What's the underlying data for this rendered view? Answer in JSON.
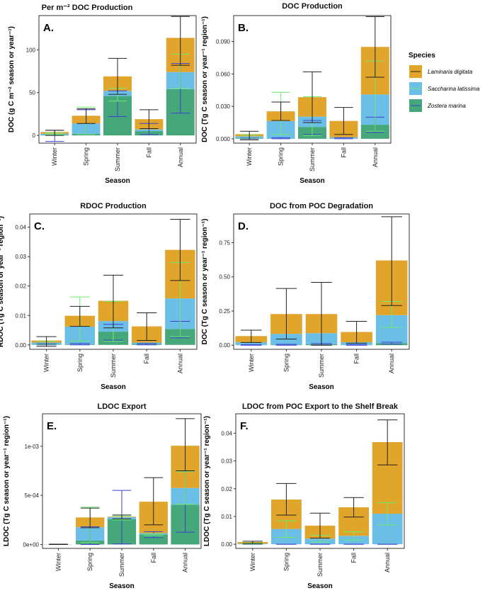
{
  "colors": {
    "laminaria": "#E1A52B",
    "saccharina": "#6BBFE6",
    "zostera": "#45A77A",
    "err_lam": "#222222",
    "err_sac": "#6CEB6C",
    "err_zos": "#3B40D1",
    "panel_border": "#333333"
  },
  "legend": {
    "title": "Species",
    "items": [
      {
        "label": "Laminaria digitata",
        "color": "#E1A52B",
        "err": "#222222"
      },
      {
        "label": "Saccharina latissima",
        "color": "#6BBFE6",
        "err": "#6CEB6C"
      },
      {
        "label": "Zostera marina",
        "color": "#45A77A",
        "err": "#3B40D1"
      }
    ]
  },
  "chart_data": [
    {
      "id": "A",
      "type": "bar",
      "stacked": true,
      "letter": "A.",
      "title": "Per m⁻² DOC Production",
      "xlabel": "Season",
      "ylabel": "DOC (g C m⁻² season or year⁻¹)",
      "categories": [
        "Winter",
        "Spring",
        "Summer",
        "Fall",
        "Annual"
      ],
      "ylim": [
        -9,
        140
      ],
      "yticks": [
        0,
        50,
        100
      ],
      "yticklabels": [
        "0",
        "50",
        "100"
      ],
      "series": [
        {
          "name": "Zostera marina",
          "values": [
            0.5,
            2,
            46,
            5,
            54
          ],
          "err": [
            [
              -7,
              6
            ],
            [
              1,
              30
            ],
            [
              22,
              52
            ],
            [
              1,
              14
            ],
            [
              26,
              84
            ]
          ]
        },
        {
          "name": "Saccharina latissima",
          "values": [
            1.5,
            12,
            6,
            2,
            20
          ],
          "err": [
            [
              1,
              3
            ],
            [
              1,
              33
            ],
            [
              40,
              55
            ],
            [
              null,
              null
            ],
            [
              55,
              95
            ]
          ]
        },
        {
          "name": "Laminaria digitata",
          "values": [
            2,
            9,
            17,
            12,
            40
          ],
          "err": [
            [
              0,
              6
            ],
            [
              14,
              31
            ],
            [
              48,
              90
            ],
            [
              8,
              30
            ],
            [
              82,
              139
            ]
          ]
        }
      ]
    },
    {
      "id": "B",
      "type": "bar",
      "stacked": true,
      "letter": "B.",
      "title": "DOC Production",
      "xlabel": "Season",
      "ylabel": "DOC (Tg C season or year⁻¹ region⁻¹)",
      "categories": [
        "Winter",
        "Spring",
        "Summer",
        "Fall",
        "Annual"
      ],
      "ylim": [
        -0.004,
        0.114
      ],
      "yticks": [
        0,
        0.03,
        0.06,
        0.09
      ],
      "yticklabels": [
        "0.000",
        "0.030",
        "0.060",
        "0.090"
      ],
      "series": [
        {
          "name": "Zostera marina",
          "values": [
            0.0003,
            0.0004,
            0.011,
            0.0003,
            0.013
          ],
          "err": [
            [
              0,
              0.0008
            ],
            [
              0,
              0.001
            ],
            [
              0.004,
              0.017
            ],
            [
              0,
              0.001
            ],
            [
              0.006,
              0.02
            ]
          ]
        },
        {
          "name": "Saccharina latissima",
          "values": [
            0.002,
            0.016,
            0.0095,
            0.0012,
            0.028
          ],
          "err": [
            [
              0.0005,
              0.0035
            ],
            [
              0.004,
              0.043
            ],
            [
              0.003,
              0.039
            ],
            [
              null,
              null
            ],
            [
              0.007,
              0.072
            ]
          ]
        },
        {
          "name": "Laminaria digitata",
          "values": [
            0.002,
            0.009,
            0.018,
            0.015,
            0.044
          ],
          "err": [
            [
              -0.001,
              0.007
            ],
            [
              0.017,
              0.034
            ],
            [
              0.015,
              0.062
            ],
            [
              0.004,
              0.029
            ],
            [
              0.057,
              0.113
            ]
          ]
        }
      ]
    },
    {
      "id": "C",
      "type": "bar",
      "stacked": true,
      "letter": "C.",
      "title": "RDOC Production",
      "xlabel": "Season",
      "ylabel": "RDOC (Tg C season or year⁻¹ region⁻¹)",
      "categories": [
        "Winter",
        "Spring",
        "Summer",
        "Fall",
        "Annual"
      ],
      "ylim": [
        -0.0015,
        0.0445
      ],
      "yticks": [
        0,
        0.01,
        0.02,
        0.03,
        0.04
      ],
      "yticklabels": [
        "0.00",
        "0.01",
        "0.02",
        "0.03",
        "0.04"
      ],
      "series": [
        {
          "name": "Zostera marina",
          "values": [
            0.0001,
            0.0002,
            0.0045,
            0.0003,
            0.0054
          ],
          "err": [
            [
              0,
              0.0004
            ],
            [
              0,
              0.0005
            ],
            [
              0.0016,
              0.007
            ],
            [
              0,
              0.0005
            ],
            [
              0.0024,
              0.008
            ]
          ]
        },
        {
          "name": "Saccharina latissima",
          "values": [
            0.0007,
            0.006,
            0.0036,
            0.0005,
            0.0104
          ],
          "err": [
            [
              0.0002,
              0.0012
            ],
            [
              0.0013,
              0.0163
            ],
            [
              0.0012,
              0.0148
            ],
            [
              null,
              null
            ],
            [
              0.0028,
              0.028
            ]
          ]
        },
        {
          "name": "Laminaria digitata",
          "values": [
            0.0007,
            0.0037,
            0.0069,
            0.0055,
            0.0165
          ],
          "err": [
            [
              -0.0005,
              0.0028
            ],
            [
              0.0063,
              0.0131
            ],
            [
              0.0058,
              0.0237
            ],
            [
              0.0015,
              0.0109
            ],
            [
              0.0219,
              0.0427
            ]
          ]
        }
      ]
    },
    {
      "id": "D",
      "type": "bar",
      "stacked": true,
      "letter": "D.",
      "title": "DOC from POC Degradation",
      "xlabel": "Season",
      "ylabel": "DOC (Tg C season or year⁻¹ region⁻¹)",
      "categories": [
        "Winter",
        "Spring",
        "Summer",
        "Fall",
        "Annual"
      ],
      "ylim": [
        -0.03,
        0.96
      ],
      "yticks": [
        0,
        0.25,
        0.5,
        0.75
      ],
      "yticklabels": [
        "0.00",
        "0.25",
        "0.50",
        "0.75"
      ],
      "series": [
        {
          "name": "Zostera marina",
          "values": [
            0.002,
            0.003,
            0.008,
            0.002,
            0.015
          ],
          "err": [
            [
              0,
              0.004
            ],
            [
              0,
              0.006
            ],
            [
              0.002,
              0.012
            ],
            [
              0,
              0.004
            ],
            [
              0.008,
              0.022
            ]
          ]
        },
        {
          "name": "Saccharina latissima",
          "values": [
            0.02,
            0.08,
            0.08,
            0.02,
            0.205
          ],
          "err": [
            [
              null,
              null
            ],
            [
              null,
              null
            ],
            [
              null,
              null
            ],
            [
              null,
              null
            ],
            [
              0.13,
              0.32
            ]
          ]
        },
        {
          "name": "Laminaria digitata",
          "values": [
            0.045,
            0.145,
            0.14,
            0.075,
            0.4
          ],
          "err": [
            [
              0.02,
              0.11
            ],
            [
              0.045,
              0.415
            ],
            [
              0.0,
              0.46
            ],
            [
              0.015,
              0.175
            ],
            [
              0.29,
              0.94
            ]
          ]
        }
      ]
    },
    {
      "id": "E",
      "type": "bar",
      "stacked": true,
      "letter": "E.",
      "title": "LDOC Export",
      "xlabel": "Season",
      "ylabel": "LDOC (Tg C season or year⁻¹ region⁻¹)",
      "categories": [
        "Winter",
        "Spring",
        "Summer",
        "Fall",
        "Annual"
      ],
      "ylim": [
        -4e-05,
        0.00133
      ],
      "yticks": [
        0,
        0.0005,
        0.001
      ],
      "yticklabels": [
        "0e+00",
        "5e-04",
        "1e-03"
      ],
      "series": [
        {
          "name": "Zostera marina",
          "values": [
            1e-06,
            4e-05,
            0.000258,
            0.0001,
            0.000405
          ],
          "err": [
            [
              0,
              2e-06
            ],
            [
              0,
              0.00018
            ],
            [
              5e-06,
              0.00055
            ],
            [
              7e-05,
              0.00013
            ],
            [
              0.000125,
              0.00075
            ]
          ]
        },
        {
          "name": "Saccharina latissima",
          "values": [
            1e-06,
            0.000135,
            2e-05,
            1.5e-05,
            0.00017
          ],
          "err": [
            [
              0,
              2e-06
            ],
            [
              2e-05,
              0.00038
            ],
            [
              0.00025,
              0.00029
            ],
            [
              9e-05,
              0.00011
            ],
            [
              0.00041,
              0.00074
            ]
          ]
        },
        {
          "name": "Laminaria digitata",
          "values": [
            1e-06,
            0.0001,
            5e-06,
            0.00032,
            0.00043
          ],
          "err": [
            [
              0,
              3e-06
            ],
            [
              0.00017,
              0.00037
            ],
            [
              0.00026,
              0.0003
            ],
            [
              0.0002,
              0.00068
            ],
            [
              0.00075,
              0.00128
            ]
          ]
        }
      ]
    },
    {
      "id": "F",
      "type": "bar",
      "stacked": true,
      "letter": "F.",
      "title": "LDOC from POC Export to the Shelf Break",
      "xlabel": "Season",
      "ylabel": "LDOC (Tg C season or year⁻¹ region⁻¹)",
      "categories": [
        "Winter",
        "Spring",
        "Summer",
        "Fall",
        "Annual"
      ],
      "ylim": [
        -0.0015,
        0.047
      ],
      "yticks": [
        0,
        0.01,
        0.02,
        0.03,
        0.04
      ],
      "yticklabels": [
        "0.00",
        "0.01",
        "0.02",
        "0.03",
        "0.04"
      ],
      "series": [
        {
          "name": "Zostera marina",
          "values": [
            0,
            0,
            0,
            0,
            0
          ],
          "err": [
            [
              0,
              0
            ],
            [
              0,
              0
            ],
            [
              0,
              0
            ],
            [
              0,
              0
            ],
            [
              0,
              0
            ]
          ]
        },
        {
          "name": "Saccharina latissima",
          "values": [
            0.0002,
            0.0055,
            0.002,
            0.003,
            0.011
          ],
          "err": [
            [
              0.0001,
              0.0004
            ],
            [
              0.0025,
              0.0085
            ],
            [
              0.0008,
              0.0032
            ],
            [
              0.0015,
              0.0045
            ],
            [
              0.007,
              0.015
            ]
          ]
        },
        {
          "name": "Laminaria digitata",
          "values": [
            0.0006,
            0.0106,
            0.0047,
            0.0103,
            0.0258
          ],
          "err": [
            [
              0.0003,
              0.0011
            ],
            [
              0.0105,
              0.0219
            ],
            [
              0.0022,
              0.0112
            ],
            [
              0.0098,
              0.0168
            ],
            [
              0.0286,
              0.0448
            ]
          ]
        }
      ]
    }
  ]
}
